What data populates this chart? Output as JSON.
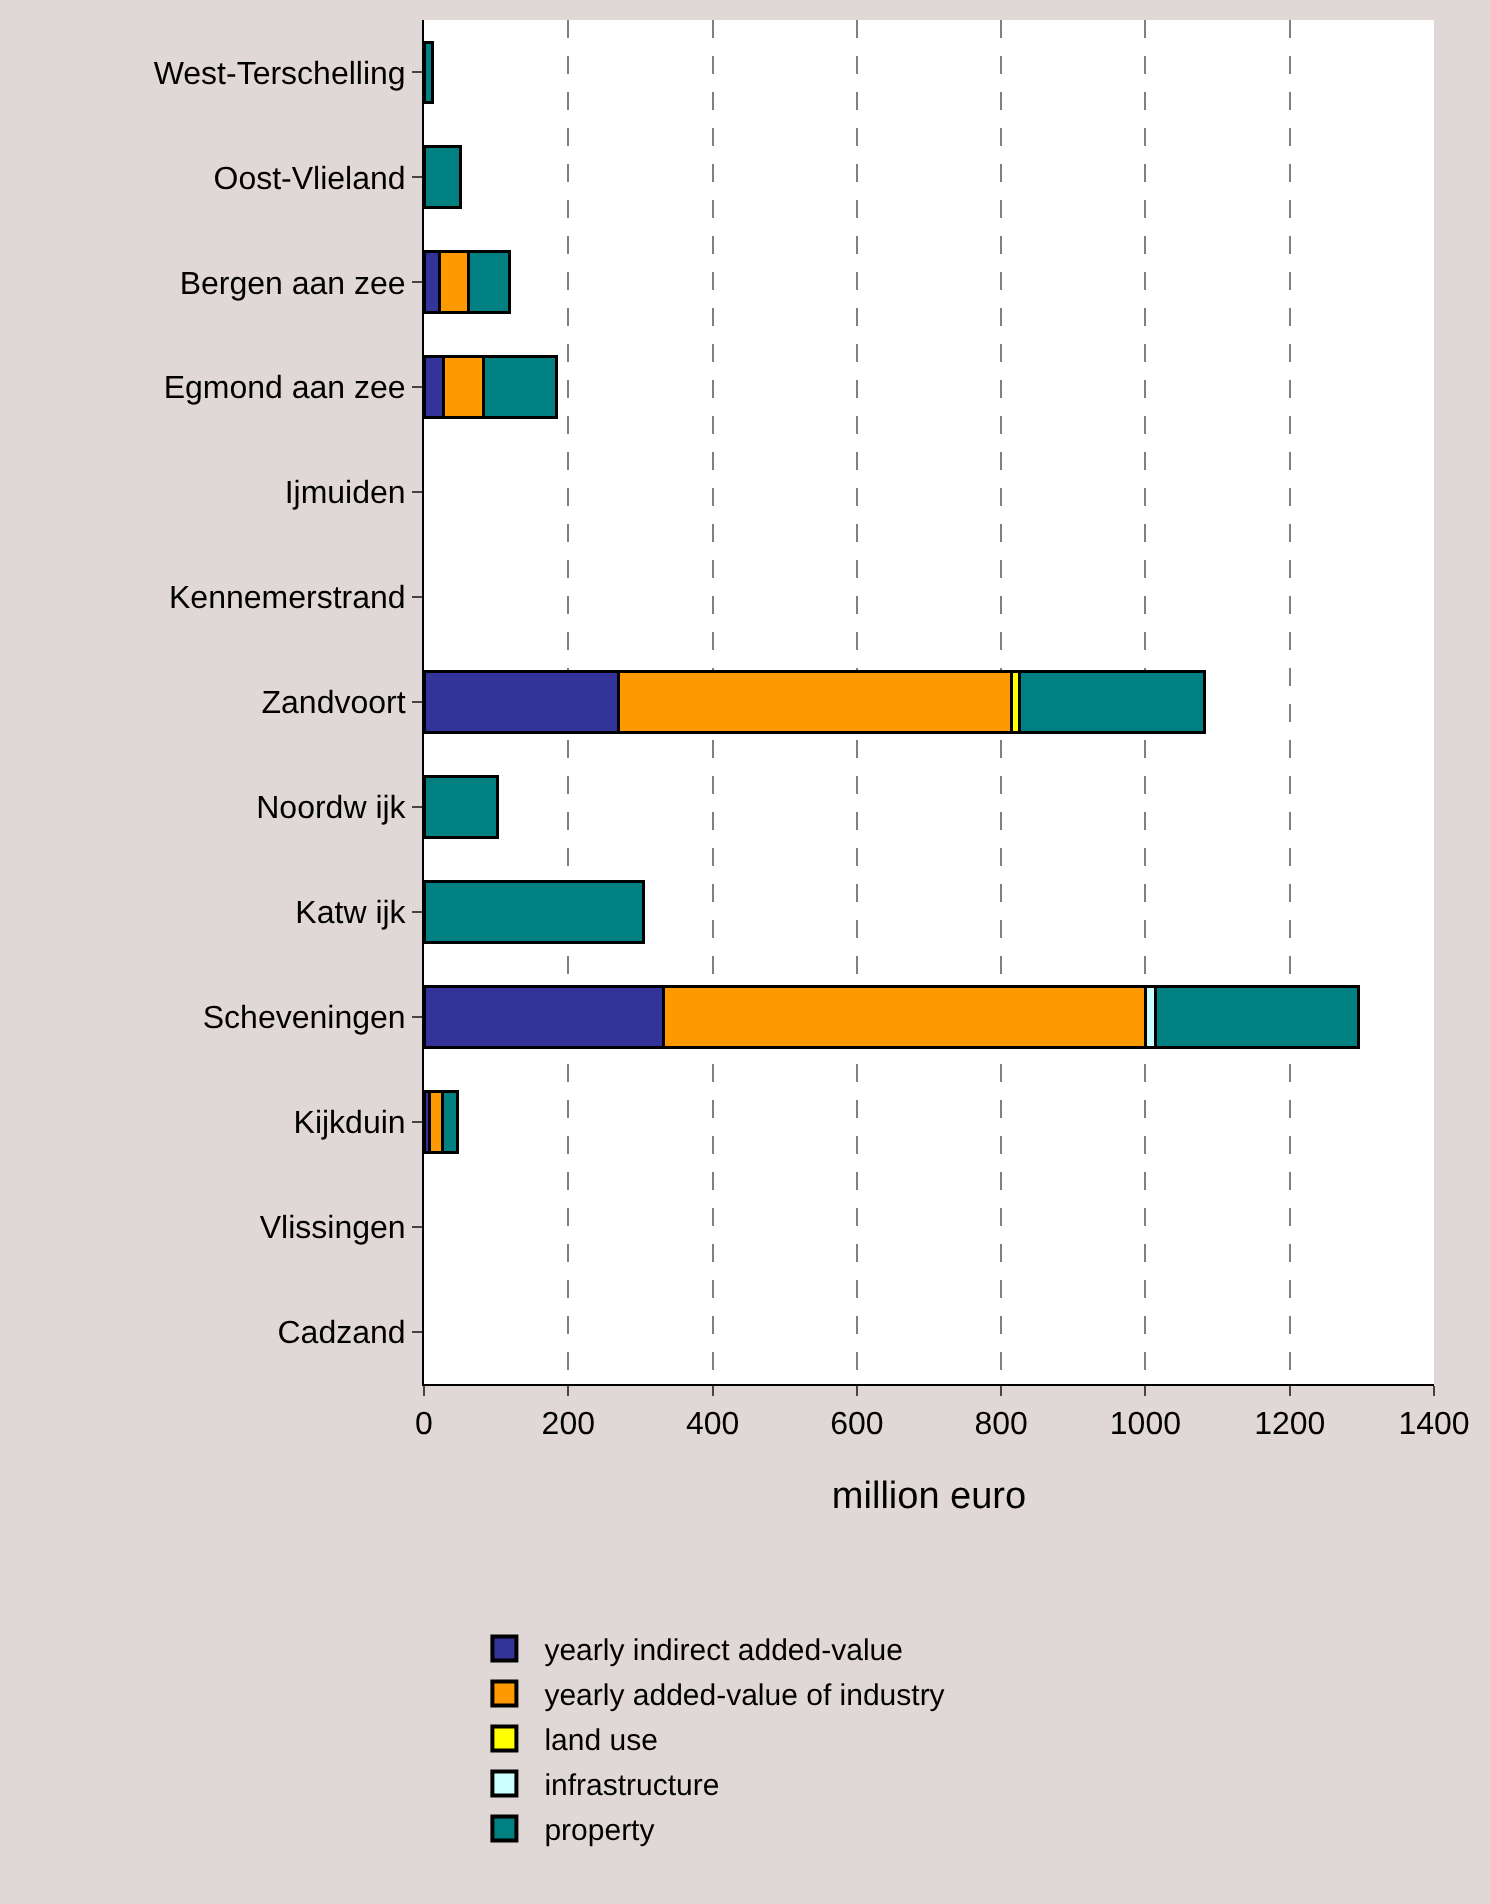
{
  "chart_data": {
    "type": "bar",
    "orientation": "horizontal",
    "stacked": true,
    "xlabel": "million euro",
    "categories": [
      "West-Terschelling",
      "Oost-Vlieland",
      "Bergen aan zee",
      "Egmond aan zee",
      "Ijmuiden",
      "Kennemerstrand",
      "Zandvoort",
      "Noordw ijk",
      "Katw ijk",
      "Scheveningen",
      "Kijkduin",
      "Vlissingen",
      "Cadzand"
    ],
    "series": [
      {
        "name": "yearly indirect added-value",
        "color": "#333399",
        "values": [
          null,
          null,
          22,
          27,
          null,
          null,
          270,
          null,
          null,
          332,
          8,
          null,
          null
        ]
      },
      {
        "name": "yearly added-value of industry",
        "color": "#ff9900",
        "values": [
          null,
          null,
          39,
          56,
          null,
          null,
          545,
          null,
          null,
          668,
          18,
          null,
          null
        ]
      },
      {
        "name": "land use",
        "color": "#ffff00",
        "values": [
          null,
          null,
          null,
          null,
          null,
          null,
          10,
          null,
          null,
          null,
          null,
          null,
          null
        ]
      },
      {
        "name": "infrastructure",
        "color": "#ccffff",
        "values": [
          null,
          null,
          null,
          null,
          null,
          null,
          null,
          null,
          null,
          14,
          null,
          null,
          null
        ]
      },
      {
        "name": "property",
        "color": "#008080",
        "values": [
          12,
          50,
          57,
          101,
          null,
          null,
          257,
          102,
          304,
          281,
          20,
          null,
          null
        ]
      }
    ],
    "xlim": [
      0,
      1400
    ],
    "xticks": [
      0,
      200,
      400,
      600,
      800,
      1000,
      1200,
      1400
    ],
    "grid": "x",
    "legend": "bottom"
  }
}
